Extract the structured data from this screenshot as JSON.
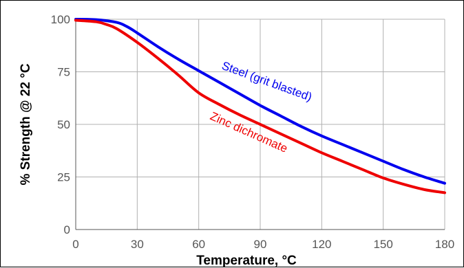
{
  "chart_data": {
    "type": "line",
    "xlabel": "Temperature, °C",
    "ylabel": "% Strength @ 22 °C",
    "xlim": [
      0,
      180
    ],
    "ylim": [
      0,
      100
    ],
    "x_ticks": [
      "0",
      "30",
      "60",
      "90",
      "120",
      "150",
      "180"
    ],
    "y_ticks": [
      "0",
      "25",
      "50",
      "75",
      "100"
    ],
    "grid": true,
    "series": [
      {
        "name": "Steel (grit blasted)",
        "color": "#0000ee",
        "x": [
          0,
          10,
          20,
          25,
          30,
          40,
          50,
          60,
          70,
          80,
          90,
          100,
          110,
          120,
          130,
          140,
          150,
          160,
          170,
          180
        ],
        "y": [
          100,
          99.8,
          98.5,
          96.5,
          93.5,
          87,
          81,
          75.5,
          70,
          64.5,
          59,
          54,
          49,
          44.5,
          40.5,
          36.5,
          32.5,
          28.5,
          25,
          22
        ]
      },
      {
        "name": "Zinc dichromate",
        "color": "#ee0000",
        "x": [
          0,
          10,
          15,
          20,
          30,
          40,
          50,
          60,
          70,
          80,
          90,
          100,
          110,
          120,
          130,
          140,
          150,
          160,
          170,
          180
        ],
        "y": [
          99.5,
          98.8,
          97.5,
          95.5,
          89,
          81.5,
          73.5,
          65,
          59.5,
          54.5,
          50,
          45.5,
          41,
          36.5,
          32.5,
          28.5,
          24.5,
          21.5,
          19,
          17.5
        ]
      }
    ]
  }
}
